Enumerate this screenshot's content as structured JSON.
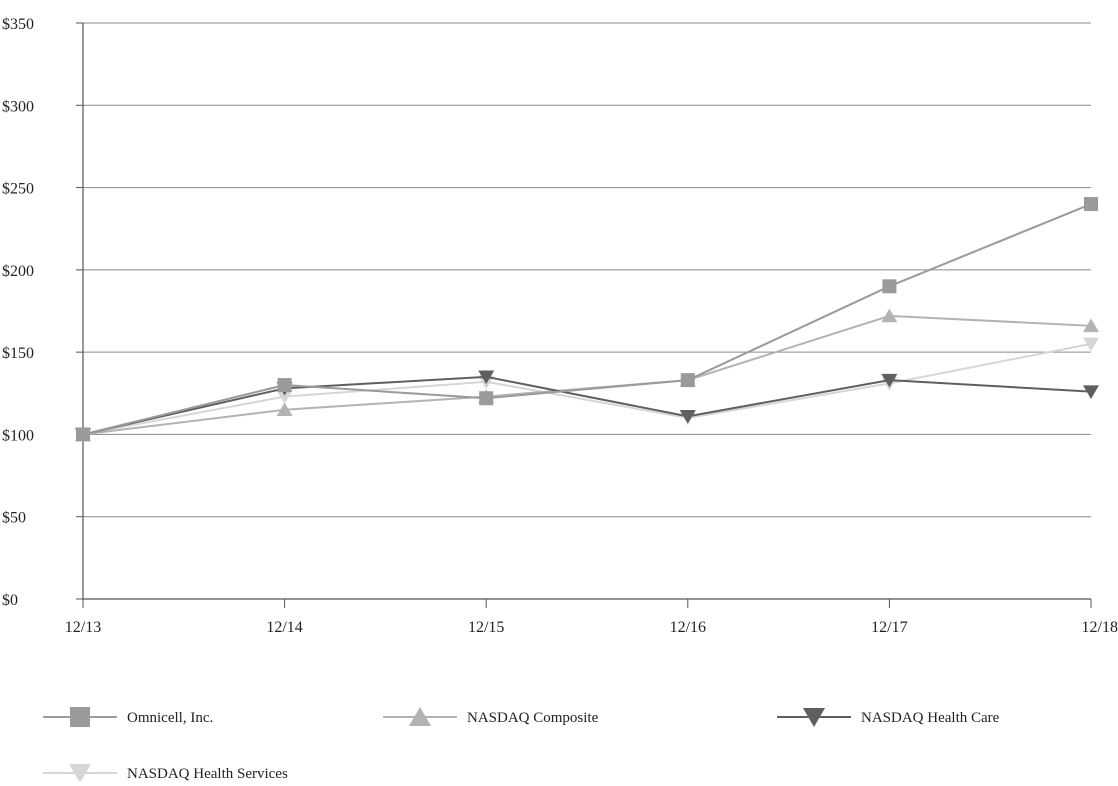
{
  "chart_data": {
    "type": "line",
    "title": "",
    "xlabel": "",
    "ylabel": "",
    "categories": [
      "12/13",
      "12/14",
      "12/15",
      "12/16",
      "12/17",
      "12/18"
    ],
    "ylim": [
      0,
      350
    ],
    "yticks": [
      0,
      50,
      100,
      150,
      200,
      250,
      300,
      350
    ],
    "ytick_labels": [
      "$0",
      "$50",
      "$100",
      "$150",
      "$200",
      "$250",
      "$300",
      "$350"
    ],
    "grid": true,
    "legend_position": "bottom",
    "series": [
      {
        "name": "Omnicell, Inc.",
        "color": "#9a9a9a",
        "marker": "square",
        "values": [
          100,
          130,
          122,
          133,
          190,
          240
        ]
      },
      {
        "name": "NASDAQ Composite",
        "color": "#b3b3b3",
        "marker": "triangle-up",
        "values": [
          100,
          115,
          123,
          133,
          172,
          166
        ]
      },
      {
        "name": "NASDAQ Health Care",
        "color": "#5f5f5f",
        "marker": "triangle-down",
        "values": [
          100,
          128,
          135,
          111,
          133,
          126
        ]
      },
      {
        "name": "NASDAQ Health Services",
        "color": "#d6d6d6",
        "marker": "triangle-down",
        "values": [
          100,
          123,
          132,
          110,
          131,
          155
        ]
      }
    ]
  }
}
